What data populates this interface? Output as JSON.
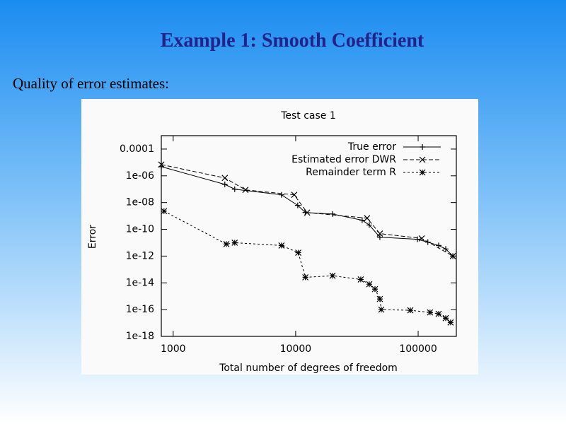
{
  "slide": {
    "title": "Example 1: Smooth Coefficient",
    "text": "Quality of error estimates:"
  },
  "chart_data": {
    "type": "line",
    "title": "Test case 1",
    "x_label": "Total number of degrees of freedom",
    "y_label": "Error",
    "xlog": true,
    "ylog": true,
    "legend": "top-right",
    "xlim": [
      800,
      205000
    ],
    "ylim": [
      1e-18,
      0.001
    ],
    "xticks": [
      1000,
      10000,
      100000
    ],
    "yticks": [
      {
        "value": 0.0001,
        "label": "0.0001"
      },
      {
        "value": 1e-06,
        "label": "1e-06"
      },
      {
        "value": 1e-08,
        "label": "1e-08"
      },
      {
        "value": 1e-10,
        "label": "1e-10"
      },
      {
        "value": 1e-12,
        "label": "1e-12"
      },
      {
        "value": 1e-14,
        "label": "1e-14"
      },
      {
        "value": 1e-16,
        "label": "1e-16"
      },
      {
        "value": 1e-18,
        "label": "1e-18"
      }
    ],
    "series": [
      {
        "name": "True error",
        "color": "#000000",
        "marker": "plus",
        "dash": "solid",
        "x": [
          800,
          2640,
          3180,
          7660,
          10400,
          12000,
          20000,
          34900,
          39900,
          48700,
          98600,
          120000,
          147000,
          168000,
          192000
        ],
        "values": [
          4.8e-06,
          2.3e-07,
          1e-07,
          3.8e-08,
          6.2e-09,
          1.8e-09,
          1.4e-09,
          4.8e-10,
          2.1e-10,
          2.6e-11,
          1.8e-11,
          1.1e-11,
          6.2e-12,
          3.4e-12,
          1e-12
        ]
      },
      {
        "name": "Estimated error DWR",
        "color": "#000000",
        "marker": "cross",
        "dash": "dashed",
        "x": [
          800,
          2640,
          3890,
          9730,
          12400,
          38300,
          48700,
          107000,
          192000
        ],
        "values": [
          6.9e-06,
          6.9e-07,
          8.9e-08,
          3.8e-08,
          1.8e-09,
          6.9e-10,
          4.8e-11,
          2.1e-11,
          1e-12
        ]
      },
      {
        "name": "Remainder term R",
        "color": "#000000",
        "marker": "star",
        "dash": "dotted",
        "x": [
          841,
          2720,
          3180,
          7660,
          10500,
          12000,
          20000,
          34000,
          39900,
          44400,
          48700,
          50000,
          86300,
          125000,
          147000,
          168000,
          184000
        ],
        "values": [
          2.3e-09,
          7.9e-12,
          1e-11,
          6.2e-12,
          1.8e-12,
          2.6e-14,
          3.4e-14,
          1.8e-14,
          7.9e-15,
          3.4e-15,
          6.2e-16,
          1e-16,
          8.9e-17,
          6.2e-17,
          4.8e-17,
          2.3e-17,
          1.1e-17
        ]
      }
    ]
  }
}
